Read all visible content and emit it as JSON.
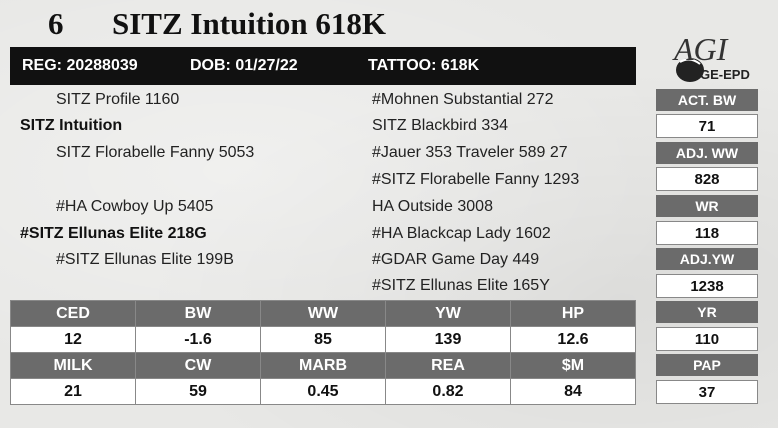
{
  "header": {
    "lot_number": "6",
    "name": "SITZ Intuition 618K"
  },
  "registration": {
    "reg": "REG: 20288039",
    "dob": "DOB: 01/27/22",
    "tattoo": "TATTOO: 618K"
  },
  "logo": {
    "text_main": "AGI",
    "text_sub": "GE-EPD",
    "icon": "agi-logo"
  },
  "pedigree": {
    "sire_sire": "SITZ Profile 1160",
    "sire": "SITZ Intuition",
    "sire_dam": "SITZ Florabelle Fanny 5053",
    "dam_sire": "#HA Cowboy Up 5405",
    "dam": "#SITZ Ellunas Elite 218G",
    "dam_dam": "#SITZ Ellunas Elite 199B",
    "right": [
      "#Mohnen Substantial 272",
      "SITZ Blackbird 334",
      "#Jauer 353 Traveler 589 27",
      "#SITZ Florabelle Fanny 1293",
      "HA Outside 3008",
      "#HA Blackcap Lady 1602",
      "#GDAR Game Day 449",
      "#SITZ Ellunas Elite 165Y"
    ]
  },
  "performance": [
    {
      "label": "ACT. BW",
      "value": "71"
    },
    {
      "label": "ADJ. WW",
      "value": "828"
    },
    {
      "label": "WR",
      "value": "118"
    },
    {
      "label": "ADJ.YW",
      "value": "1238"
    },
    {
      "label": "YR",
      "value": "110"
    },
    {
      "label": "PAP",
      "value": "37"
    }
  ],
  "epds": {
    "row1_labels": [
      "CED",
      "BW",
      "WW",
      "YW",
      "HP"
    ],
    "row1_values": [
      "12",
      "-1.6",
      "85",
      "139",
      "12.6"
    ],
    "row2_labels": [
      "MILK",
      "CW",
      "MARB",
      "REA",
      "$M"
    ],
    "row2_values": [
      "21",
      "59",
      "0.45",
      "0.82",
      "84"
    ]
  },
  "colors": {
    "bar": "#111111",
    "label_bg": "#6b6b6b",
    "value_bg": "#ffffff"
  }
}
